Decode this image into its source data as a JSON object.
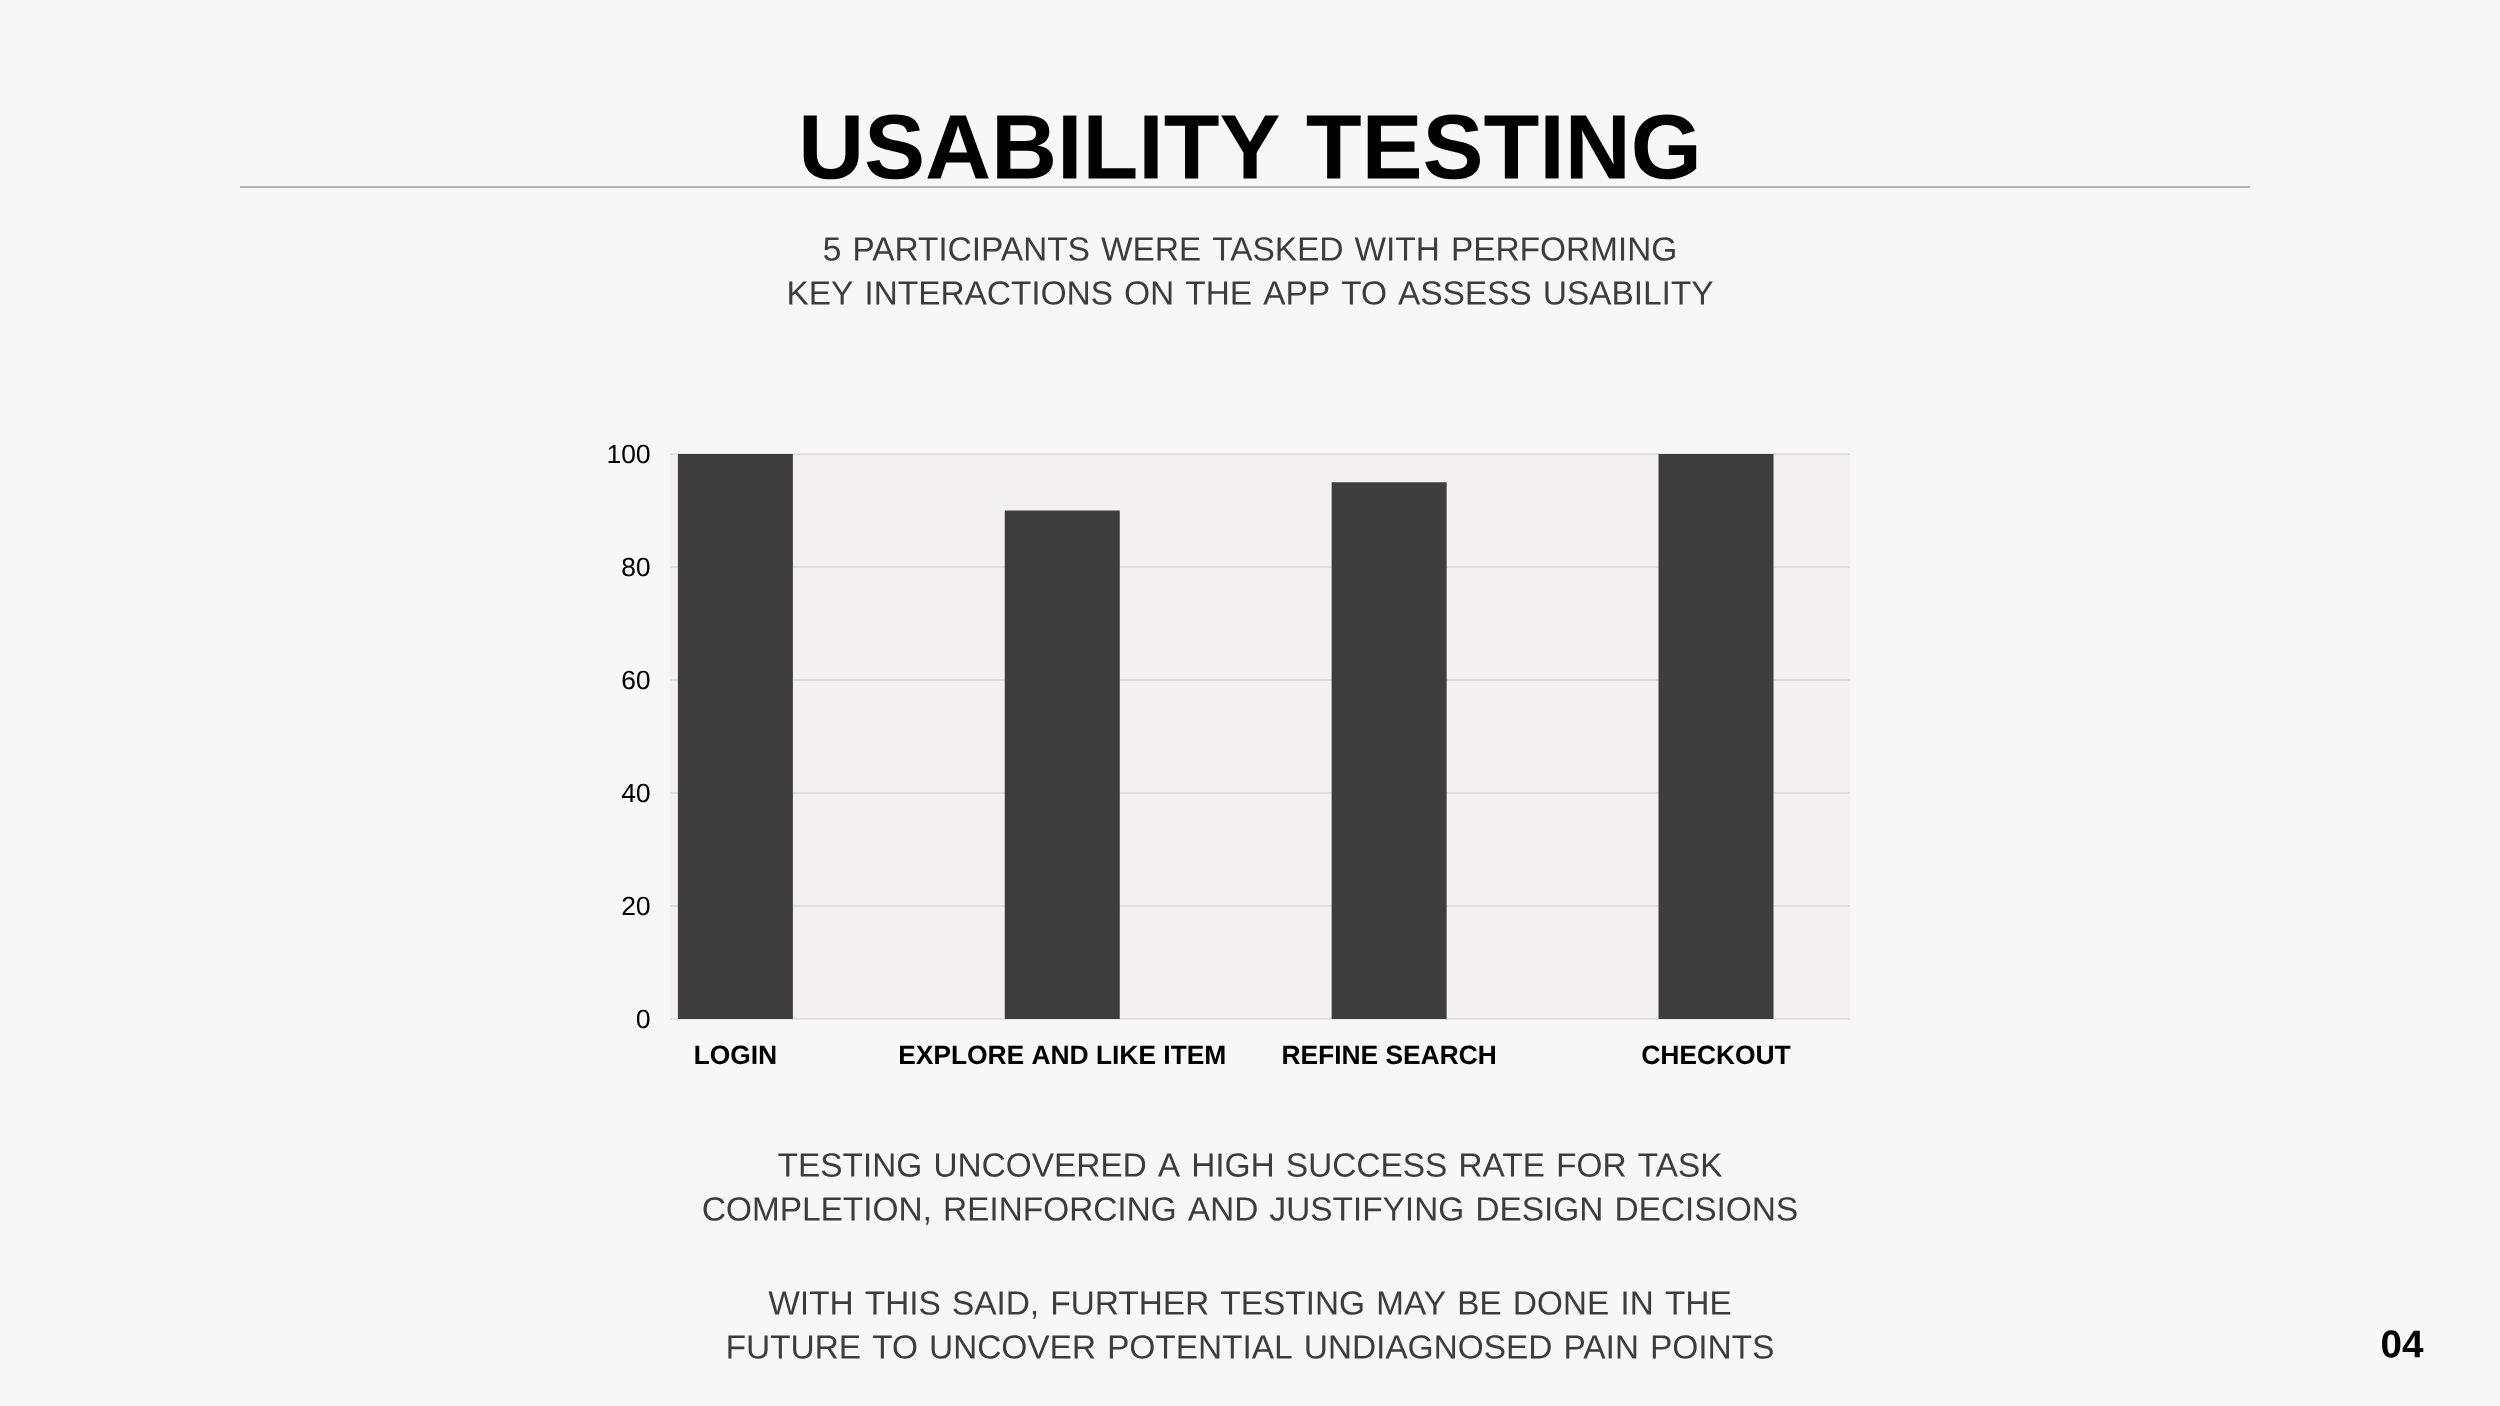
{
  "chart_data": {
    "type": "bar",
    "title": "USABILITY TESTING",
    "subtitle": "5 PARTICIPANTS WERE TASKED WITH PERFORMING KEY INTERACTIONS ON THE APP TO ASSESS USABILITY",
    "categories": [
      "LOGIN",
      "EXPLORE AND LIKE ITEM",
      "REFINE SEARCH",
      "CHECKOUT"
    ],
    "values": [
      100,
      90,
      95,
      100
    ],
    "color": "#3d3d3d",
    "ylim": [
      0,
      100
    ],
    "yticks": [
      0,
      20,
      40,
      60,
      80,
      100
    ],
    "grid": "y",
    "annotations": [
      "TESTING UNCOVERED A HIGH SUCCESS RATE FOR TASK COMPLETION, REINFORCING AND JUSTIFYING DESIGN DECISIONS",
      "WITH THIS SAID, FURTHER TESTING MAY BE DONE IN THE FUTURE TO UNCOVER POTENTIAL UNDIAGNOSED PAIN POINTS",
      "04"
    ]
  }
}
